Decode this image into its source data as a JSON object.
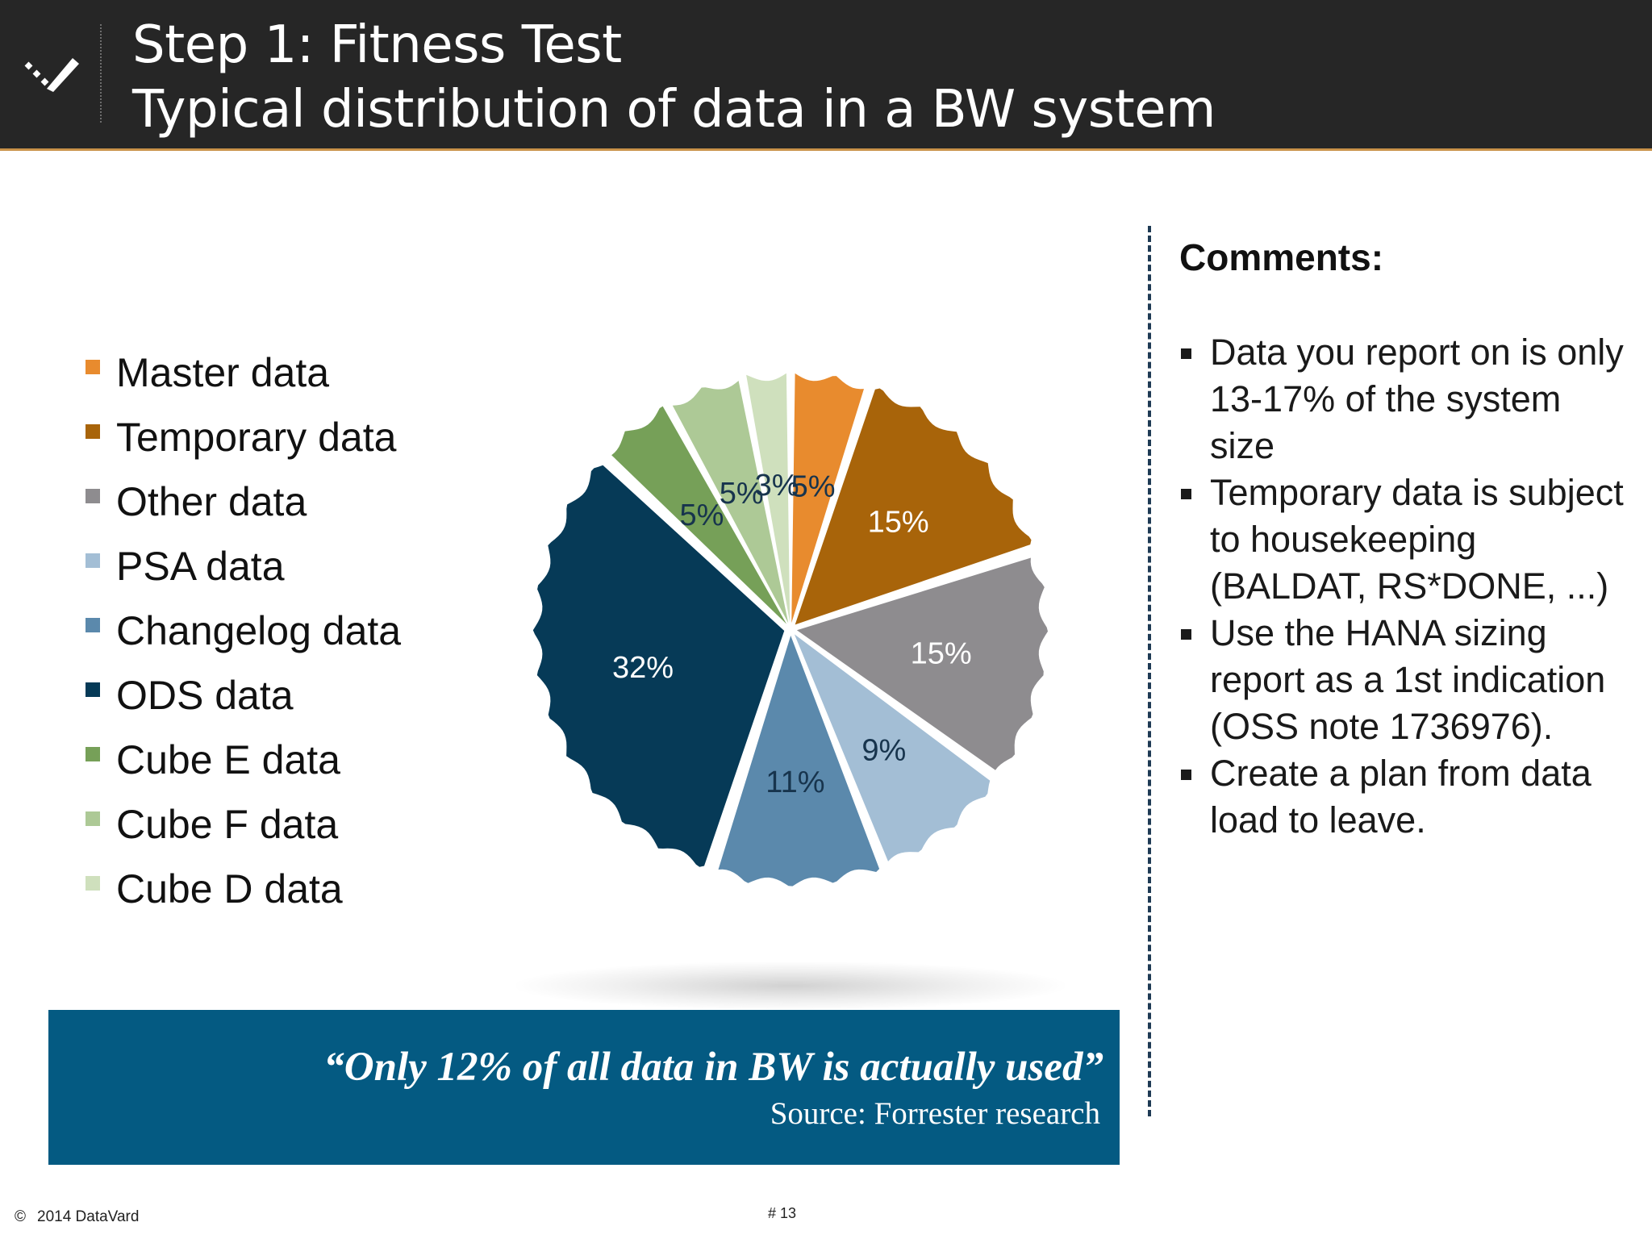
{
  "header": {
    "title_line1": "Step 1: Fitness Test",
    "title_line2": "Typical distribution of data in a BW system"
  },
  "chart_data": {
    "type": "pie",
    "categories": [
      "Master data",
      "Temporary data",
      "Other data",
      "PSA data",
      "Changelog data",
      "ODS data",
      "Cube E data",
      "Cube F data",
      "Cube D data"
    ],
    "values": [
      5,
      15,
      15,
      9,
      11,
      32,
      5,
      5,
      3
    ],
    "labels": [
      "5%",
      "15%",
      "15%",
      "9%",
      "11%",
      "32%",
      "5%",
      "5%",
      "3%"
    ],
    "colors": [
      "#e88b2e",
      "#a8640a",
      "#8e8c8f",
      "#a3bed5",
      "#5b89ac",
      "#063a57",
      "#76a058",
      "#adc996",
      "#cfe0bd"
    ],
    "label_colors": [
      "#17344d",
      "#ffffff",
      "#ffffff",
      "#17344d",
      "#17344d",
      "#ffffff",
      "#17344d",
      "#17344d",
      "#17344d"
    ],
    "legend_position": "left"
  },
  "quote": {
    "text": "“Only 12% of all data in BW is actually used”",
    "source": "Source: Forrester research"
  },
  "comments": {
    "title": "Comments:",
    "items": [
      "Data you report on is only 13-17% of the system size",
      "Temporary data is subject to housekeeping (BALDAT, RS*DONE, ...)",
      "Use the HANA sizing report as a 1st indication (OSS note 1736976).",
      "Create a plan from data load to leave."
    ]
  },
  "footer": {
    "copyright_symbol": "©",
    "copyright": "2014 DataVard",
    "page": "# 13"
  }
}
